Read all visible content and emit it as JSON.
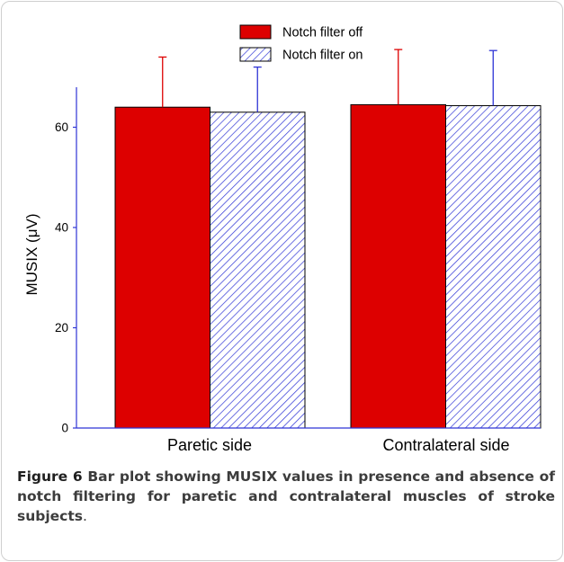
{
  "chart_data": {
    "type": "bar",
    "title": "",
    "xlabel": "",
    "ylabel": "MUSIX (μV)",
    "ylim": [
      0,
      73
    ],
    "yticks": [
      0,
      20,
      40,
      60
    ],
    "categories": [
      "Paretic side",
      "Contralateral side"
    ],
    "series": [
      {
        "name": "Notch filter off",
        "values": [
          64.0,
          64.5
        ],
        "errors": [
          10.0,
          11.0
        ],
        "color": "#dd0000",
        "pattern": "solid"
      },
      {
        "name": "Notch filter on",
        "values": [
          63.0,
          64.3
        ],
        "errors": [
          9.0,
          11.0
        ],
        "color": "#2e34d6",
        "pattern": "diagonal-hatch"
      }
    ],
    "legend": "top-center",
    "grid": false
  },
  "caption": {
    "label": "Figure 6",
    "text": "Bar plot showing MUSIX values in presence and absence of notch filtering for paretic and contralateral muscles of stroke subjects",
    "end": "."
  }
}
